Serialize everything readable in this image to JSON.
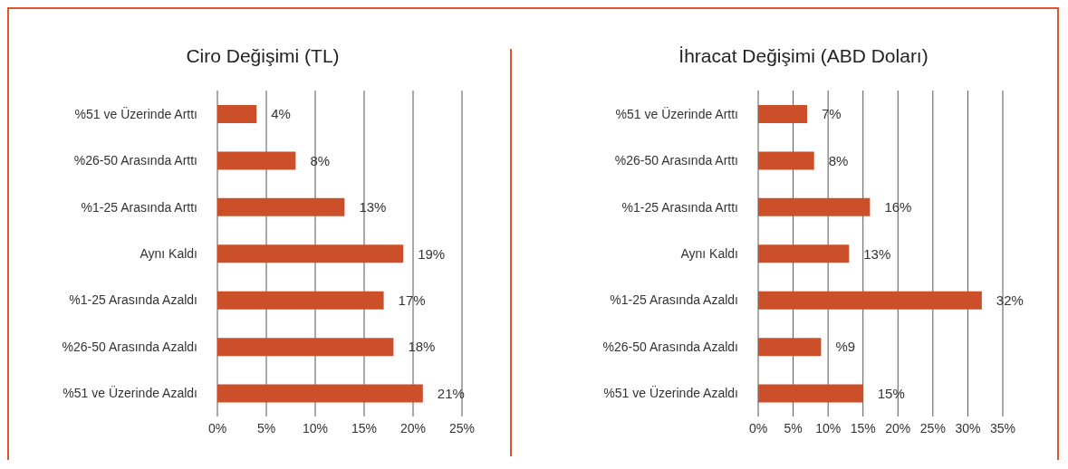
{
  "chart_data": [
    {
      "type": "bar",
      "orientation": "horizontal",
      "title": "Ciro Değişimi (TL)",
      "categories": [
        "%51 ve Üzerinde Arttı",
        "%26-50 Arasında Arttı",
        "%1-25 Arasında Arttı",
        "Aynı Kaldı",
        "%1-25 Arasında Azaldı",
        "%26-50 Arasında Azaldı",
        "%51 ve Üzerinde Azaldı"
      ],
      "values": [
        4,
        8,
        13,
        19,
        17,
        18,
        21
      ],
      "value_labels": [
        "4%",
        "8%",
        "13%",
        "19%",
        "17%",
        "18%",
        "21%"
      ],
      "color": "#cb4f28",
      "xlim": [
        0,
        25
      ],
      "xticks": [
        {
          "value": 0,
          "label": "0%"
        },
        {
          "value": 5,
          "label": "5%"
        },
        {
          "value": 10,
          "label": "10%"
        },
        {
          "value": 15,
          "label": "15%"
        },
        {
          "value": 20,
          "label": "20%"
        },
        {
          "value": 25,
          "label": "25%"
        }
      ],
      "grid": "x"
    },
    {
      "type": "bar",
      "orientation": "horizontal",
      "title": "İhracat Değişimi (ABD Doları)",
      "categories": [
        "%51 ve Üzerinde Arttı",
        "%26-50 Arasında Arttı",
        "%1-25 Arasında Arttı",
        "Aynı Kaldı",
        "%1-25 Arasında Azaldı",
        "%26-50 Arasında Azaldı",
        "%51 ve Üzerinde Azaldı"
      ],
      "values": [
        7,
        8,
        16,
        13,
        32,
        9,
        15
      ],
      "value_labels": [
        "7%",
        "8%",
        "16%",
        "13%",
        "32%",
        "%9",
        "15%"
      ],
      "color": "#cb4f28",
      "xlim": [
        0,
        35
      ],
      "xticks": [
        {
          "value": 0,
          "label": "0%"
        },
        {
          "value": 5,
          "label": "5%"
        },
        {
          "value": 10,
          "label": "10%"
        },
        {
          "value": 15,
          "label": "15%"
        },
        {
          "value": 20,
          "label": "20%"
        },
        {
          "value": 25,
          "label": "25%"
        },
        {
          "value": 30,
          "label": "30%"
        },
        {
          "value": 35,
          "label": "35%"
        }
      ],
      "grid": "x"
    }
  ]
}
